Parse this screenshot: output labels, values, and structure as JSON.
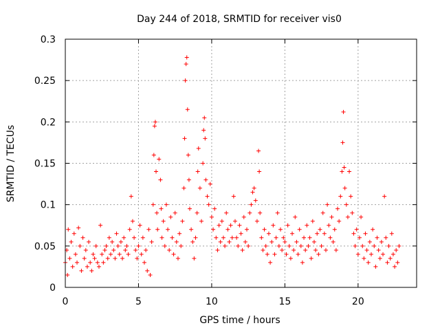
{
  "chart_data": {
    "type": "scatter",
    "title": "Day 244 of 2018, SRMTID for receiver vis0",
    "xlabel": "GPS time / hours",
    "ylabel": "SRMTID / TECUs",
    "xlim": [
      0,
      24
    ],
    "ylim": [
      0,
      0.3
    ],
    "grid": true,
    "marker": "+",
    "color": "#ff0000",
    "xticks": [
      0,
      5,
      10,
      15,
      20
    ],
    "xtick_labels": [
      "0",
      "5",
      "10",
      "15",
      "20"
    ],
    "yticks": [
      0,
      0.05,
      0.1,
      0.15,
      0.2,
      0.25,
      0.3
    ],
    "ytick_labels": [
      "0",
      "0.05",
      "0.1",
      "0.15",
      "0.2",
      "0.25",
      "0.3"
    ],
    "series": [
      {
        "name": "SRMTID",
        "points": [
          [
            0.0,
            0.03
          ],
          [
            0.1,
            0.045
          ],
          [
            0.15,
            0.015
          ],
          [
            0.2,
            0.07
          ],
          [
            0.3,
            0.035
          ],
          [
            0.4,
            0.055
          ],
          [
            0.5,
            0.025
          ],
          [
            0.6,
            0.065
          ],
          [
            0.7,
            0.04
          ],
          [
            0.8,
            0.03
          ],
          [
            0.9,
            0.072
          ],
          [
            1.0,
            0.05
          ],
          [
            1.1,
            0.02
          ],
          [
            1.2,
            0.06
          ],
          [
            1.3,
            0.035
          ],
          [
            1.4,
            0.045
          ],
          [
            1.5,
            0.025
          ],
          [
            1.6,
            0.055
          ],
          [
            1.7,
            0.03
          ],
          [
            1.8,
            0.02
          ],
          [
            1.9,
            0.04
          ],
          [
            2.0,
            0.035
          ],
          [
            2.1,
            0.05
          ],
          [
            2.2,
            0.03
          ],
          [
            2.3,
            0.025
          ],
          [
            2.4,
            0.075
          ],
          [
            2.5,
            0.04
          ],
          [
            2.6,
            0.03
          ],
          [
            2.7,
            0.045
          ],
          [
            2.8,
            0.05
          ],
          [
            2.9,
            0.035
          ],
          [
            3.0,
            0.06
          ],
          [
            3.1,
            0.04
          ],
          [
            3.2,
            0.055
          ],
          [
            3.3,
            0.045
          ],
          [
            3.4,
            0.035
          ],
          [
            3.5,
            0.065
          ],
          [
            3.6,
            0.05
          ],
          [
            3.7,
            0.04
          ],
          [
            3.8,
            0.055
          ],
          [
            3.9,
            0.035
          ],
          [
            4.0,
            0.06
          ],
          [
            4.1,
            0.045
          ],
          [
            4.2,
            0.05
          ],
          [
            4.3,
            0.04
          ],
          [
            4.4,
            0.07
          ],
          [
            4.5,
            0.11
          ],
          [
            4.6,
            0.08
          ],
          [
            4.7,
            0.06
          ],
          [
            4.8,
            0.045
          ],
          [
            4.9,
            0.035
          ],
          [
            5.0,
            0.05
          ],
          [
            5.1,
            0.075
          ],
          [
            5.2,
            0.04
          ],
          [
            5.3,
            0.06
          ],
          [
            5.4,
            0.03
          ],
          [
            5.5,
            0.045
          ],
          [
            5.6,
            0.02
          ],
          [
            5.7,
            0.07
          ],
          [
            5.8,
            0.015
          ],
          [
            5.9,
            0.055
          ],
          [
            6.0,
            0.1
          ],
          [
            6.05,
            0.16
          ],
          [
            6.1,
            0.195
          ],
          [
            6.15,
            0.2
          ],
          [
            6.2,
            0.14
          ],
          [
            6.25,
            0.09
          ],
          [
            6.3,
            0.07
          ],
          [
            6.4,
            0.155
          ],
          [
            6.5,
            0.13
          ],
          [
            6.55,
            0.095
          ],
          [
            6.6,
            0.06
          ],
          [
            6.7,
            0.08
          ],
          [
            6.8,
            0.05
          ],
          [
            6.9,
            0.1
          ],
          [
            7.0,
            0.07
          ],
          [
            7.1,
            0.045
          ],
          [
            7.2,
            0.085
          ],
          [
            7.3,
            0.06
          ],
          [
            7.4,
            0.04
          ],
          [
            7.5,
            0.09
          ],
          [
            7.6,
            0.055
          ],
          [
            7.7,
            0.035
          ],
          [
            7.8,
            0.065
          ],
          [
            7.9,
            0.05
          ],
          [
            8.0,
            0.08
          ],
          [
            8.1,
            0.12
          ],
          [
            8.15,
            0.18
          ],
          [
            8.2,
            0.25
          ],
          [
            8.25,
            0.27
          ],
          [
            8.3,
            0.278
          ],
          [
            8.35,
            0.215
          ],
          [
            8.4,
            0.16
          ],
          [
            8.45,
            0.13
          ],
          [
            8.5,
            0.095
          ],
          [
            8.6,
            0.07
          ],
          [
            8.7,
            0.055
          ],
          [
            8.8,
            0.035
          ],
          [
            8.9,
            0.06
          ],
          [
            9.0,
            0.09
          ],
          [
            9.05,
            0.14
          ],
          [
            9.1,
            0.168
          ],
          [
            9.2,
            0.12
          ],
          [
            9.3,
            0.08
          ],
          [
            9.4,
            0.15
          ],
          [
            9.45,
            0.19
          ],
          [
            9.5,
            0.205
          ],
          [
            9.55,
            0.18
          ],
          [
            9.6,
            0.13
          ],
          [
            9.7,
            0.11
          ],
          [
            9.8,
            0.1
          ],
          [
            9.9,
            0.125
          ],
          [
            10.0,
            0.085
          ],
          [
            10.1,
            0.07
          ],
          [
            10.2,
            0.095
          ],
          [
            10.3,
            0.06
          ],
          [
            10.4,
            0.045
          ],
          [
            10.5,
            0.075
          ],
          [
            10.6,
            0.055
          ],
          [
            10.7,
            0.08
          ],
          [
            10.8,
            0.06
          ],
          [
            10.9,
            0.05
          ],
          [
            11.0,
            0.09
          ],
          [
            11.1,
            0.07
          ],
          [
            11.2,
            0.055
          ],
          [
            11.3,
            0.075
          ],
          [
            11.4,
            0.06
          ],
          [
            11.5,
            0.11
          ],
          [
            11.6,
            0.08
          ],
          [
            11.7,
            0.06
          ],
          [
            11.8,
            0.05
          ],
          [
            11.9,
            0.075
          ],
          [
            12.0,
            0.065
          ],
          [
            12.1,
            0.045
          ],
          [
            12.2,
            0.085
          ],
          [
            12.3,
            0.055
          ],
          [
            12.4,
            0.07
          ],
          [
            12.5,
            0.05
          ],
          [
            12.6,
            0.09
          ],
          [
            12.7,
            0.1
          ],
          [
            12.8,
            0.115
          ],
          [
            12.9,
            0.12
          ],
          [
            13.0,
            0.105
          ],
          [
            13.1,
            0.08
          ],
          [
            13.2,
            0.165
          ],
          [
            13.25,
            0.14
          ],
          [
            13.3,
            0.09
          ],
          [
            13.4,
            0.06
          ],
          [
            13.5,
            0.045
          ],
          [
            13.6,
            0.07
          ],
          [
            13.7,
            0.05
          ],
          [
            13.8,
            0.04
          ],
          [
            13.9,
            0.065
          ],
          [
            14.0,
            0.03
          ],
          [
            14.1,
            0.055
          ],
          [
            14.2,
            0.075
          ],
          [
            14.3,
            0.04
          ],
          [
            14.4,
            0.06
          ],
          [
            14.5,
            0.09
          ],
          [
            14.6,
            0.05
          ],
          [
            14.7,
            0.07
          ],
          [
            14.8,
            0.045
          ],
          [
            14.9,
            0.06
          ],
          [
            15.0,
            0.055
          ],
          [
            15.1,
            0.04
          ],
          [
            15.2,
            0.075
          ],
          [
            15.3,
            0.05
          ],
          [
            15.4,
            0.035
          ],
          [
            15.5,
            0.065
          ],
          [
            15.6,
            0.045
          ],
          [
            15.7,
            0.085
          ],
          [
            15.8,
            0.055
          ],
          [
            15.9,
            0.04
          ],
          [
            16.0,
            0.07
          ],
          [
            16.1,
            0.05
          ],
          [
            16.2,
            0.03
          ],
          [
            16.3,
            0.06
          ],
          [
            16.4,
            0.045
          ],
          [
            16.5,
            0.075
          ],
          [
            16.6,
            0.05
          ],
          [
            16.7,
            0.06
          ],
          [
            16.8,
            0.035
          ],
          [
            16.9,
            0.08
          ],
          [
            17.0,
            0.055
          ],
          [
            17.1,
            0.045
          ],
          [
            17.2,
            0.065
          ],
          [
            17.3,
            0.04
          ],
          [
            17.4,
            0.07
          ],
          [
            17.5,
            0.05
          ],
          [
            17.6,
            0.09
          ],
          [
            17.7,
            0.065
          ],
          [
            17.8,
            0.045
          ],
          [
            17.9,
            0.1
          ],
          [
            18.0,
            0.075
          ],
          [
            18.1,
            0.06
          ],
          [
            18.2,
            0.085
          ],
          [
            18.3,
            0.055
          ],
          [
            18.4,
            0.07
          ],
          [
            18.5,
            0.045
          ],
          [
            18.6,
            0.095
          ],
          [
            18.7,
            0.08
          ],
          [
            18.8,
            0.11
          ],
          [
            18.9,
            0.14
          ],
          [
            18.95,
            0.175
          ],
          [
            19.0,
            0.212
          ],
          [
            19.05,
            0.145
          ],
          [
            19.1,
            0.12
          ],
          [
            19.2,
            0.1
          ],
          [
            19.3,
            0.085
          ],
          [
            19.4,
            0.14
          ],
          [
            19.5,
            0.11
          ],
          [
            19.6,
            0.09
          ],
          [
            19.7,
            0.065
          ],
          [
            19.8,
            0.05
          ],
          [
            19.9,
            0.07
          ],
          [
            20.0,
            0.04
          ],
          [
            20.1,
            0.06
          ],
          [
            20.2,
            0.085
          ],
          [
            20.3,
            0.05
          ],
          [
            20.4,
            0.035
          ],
          [
            20.5,
            0.065
          ],
          [
            20.6,
            0.045
          ],
          [
            20.7,
            0.03
          ],
          [
            20.8,
            0.055
          ],
          [
            20.9,
            0.04
          ],
          [
            21.0,
            0.07
          ],
          [
            21.1,
            0.05
          ],
          [
            21.2,
            0.025
          ],
          [
            21.3,
            0.06
          ],
          [
            21.4,
            0.045
          ],
          [
            21.5,
            0.035
          ],
          [
            21.6,
            0.055
          ],
          [
            21.7,
            0.04
          ],
          [
            21.8,
            0.11
          ],
          [
            21.9,
            0.06
          ],
          [
            22.0,
            0.03
          ],
          [
            22.1,
            0.05
          ],
          [
            22.2,
            0.035
          ],
          [
            22.3,
            0.065
          ],
          [
            22.4,
            0.04
          ],
          [
            22.5,
            0.025
          ],
          [
            22.6,
            0.045
          ],
          [
            22.7,
            0.03
          ],
          [
            22.8,
            0.05
          ]
        ]
      }
    ]
  }
}
